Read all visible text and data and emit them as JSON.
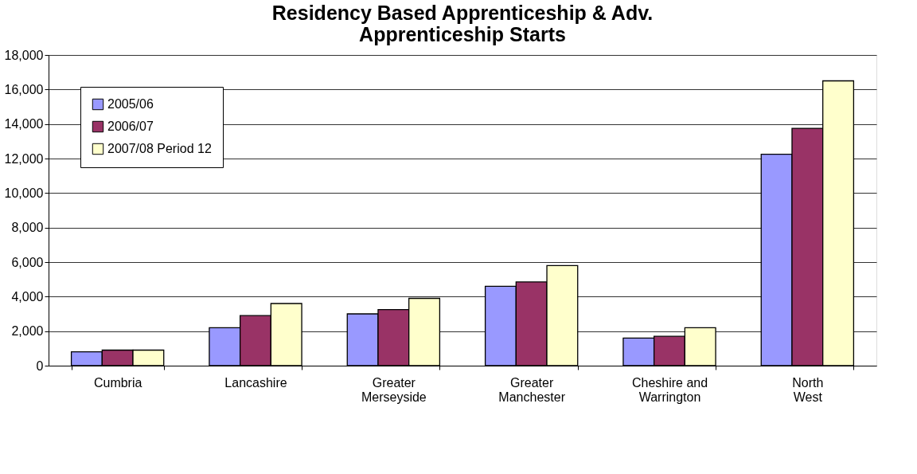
{
  "chart_data": {
    "type": "bar",
    "title": "Residency Based Apprenticeship & Adv. Apprenticeship Starts",
    "categories": [
      "Cumbria",
      "Lancashire",
      "Greater Merseyside",
      "Greater Manchester",
      "Cheshire and Warrington",
      "North West"
    ],
    "series": [
      {
        "name": "2005/06",
        "color": "#9999ff",
        "values": [
          800,
          2200,
          3000,
          4600,
          1600,
          12250
        ]
      },
      {
        "name": "2006/07",
        "color": "#993366",
        "values": [
          900,
          2900,
          3250,
          4850,
          1700,
          13750
        ]
      },
      {
        "name": "2007/08 Period 12",
        "color": "#ffffcc",
        "values": [
          900,
          3600,
          3900,
          5800,
          2200,
          16500
        ]
      }
    ],
    "ylim": [
      0,
      18000
    ],
    "yticks": [
      {
        "value": 0,
        "label": "0"
      },
      {
        "value": 2000,
        "label": "2,000"
      },
      {
        "value": 4000,
        "label": "4,000"
      },
      {
        "value": 6000,
        "label": "6,000"
      },
      {
        "value": 8000,
        "label": "8,000"
      },
      {
        "value": 10000,
        "label": "10,000"
      },
      {
        "value": 12000,
        "label": "12,000"
      },
      {
        "value": 14000,
        "label": "14,000"
      },
      {
        "value": 16000,
        "label": "16,000"
      },
      {
        "value": 18000,
        "label": "18,000"
      }
    ],
    "grid": "y",
    "legend": "top left"
  }
}
